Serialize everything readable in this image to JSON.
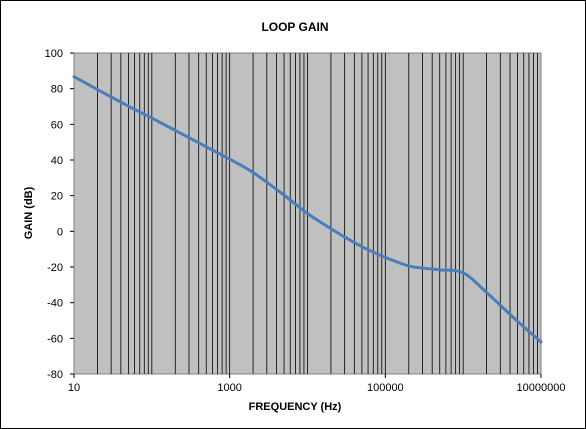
{
  "chart_data": {
    "type": "line",
    "title": "LOOP GAIN",
    "xlabel": "FREQUENCY (Hz)",
    "ylabel": "GAIN (dB)",
    "x_scale": "log",
    "xlim": [
      10,
      10000000
    ],
    "ylim": [
      -80,
      100
    ],
    "y_ticks": [
      100,
      80,
      60,
      40,
      20,
      0,
      -20,
      -40,
      -60,
      -80
    ],
    "y_tick_labels": [
      "100",
      "80",
      "60",
      "40",
      "20",
      "0",
      "-20",
      "-40",
      "-60",
      "-80"
    ],
    "x_ticks": [
      10,
      1000,
      100000,
      10000000
    ],
    "x_tick_labels": [
      "10",
      "1000",
      "100000",
      "10000000"
    ],
    "grid": "vertical log gridlines",
    "legend": "none",
    "series": [
      {
        "color": "#4a7ebb",
        "x": [
          10,
          20,
          50,
          100,
          200,
          500,
          1000,
          2000,
          5000,
          10000,
          20000,
          30000,
          50000,
          100000,
          200000,
          300000,
          500000,
          1000000,
          2000000,
          5000000,
          10000000
        ],
        "y": [
          86.7,
          79.5,
          70.2,
          63.5,
          56.6,
          47.4,
          40.5,
          33,
          20.3,
          10,
          1.5,
          -3.2,
          -8.6,
          -14.6,
          -19.4,
          -20.6,
          -21.6,
          -23.3,
          -34.3,
          -50.5,
          -62
        ]
      }
    ]
  },
  "colors": {
    "plot_background": "#c0c0c0",
    "grid_line": "#000000",
    "series_line": "#4a7ebb",
    "frame": "#000000"
  }
}
